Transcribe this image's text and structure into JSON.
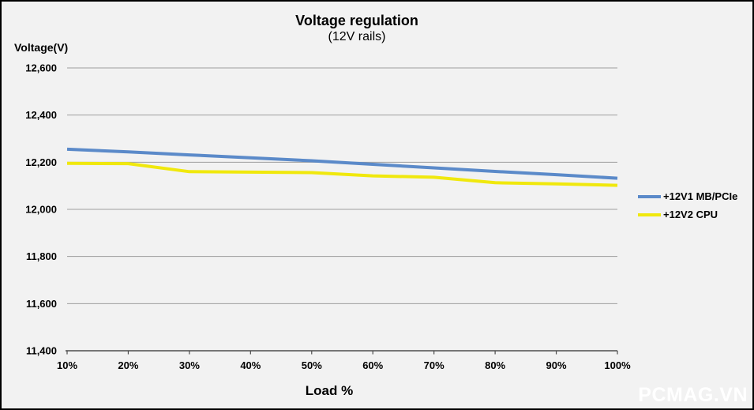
{
  "chart": {
    "title": "Voltage regulation",
    "subtitle": "(12V rails)",
    "y_axis_label": "Voltage(V)",
    "x_axis_label": "Load %",
    "watermark": "PCMAG.VN"
  },
  "chart_data": {
    "type": "line",
    "title": "Voltage regulation",
    "subtitle": "(12V rails)",
    "xlabel": "Load %",
    "ylabel": "Voltage(V)",
    "categories": [
      "10%",
      "20%",
      "30%",
      "40%",
      "50%",
      "60%",
      "70%",
      "80%",
      "90%",
      "100%"
    ],
    "series": [
      {
        "name": "+12V1 MB/PCIe",
        "color": "#5b8ac9",
        "values": [
          12255,
          12244,
          12231,
          12219,
          12206,
          12191,
          12176,
          12161,
          12147,
          12132
        ]
      },
      {
        "name": "+12V2 CPU",
        "color": "#f0e80d",
        "values": [
          12195,
          12194,
          12160,
          12158,
          12156,
          12142,
          12136,
          12113,
          12108,
          12102
        ]
      }
    ],
    "ylim": [
      11400,
      12600
    ],
    "ytick_step": 200,
    "grid": true,
    "legend_position": "right"
  }
}
